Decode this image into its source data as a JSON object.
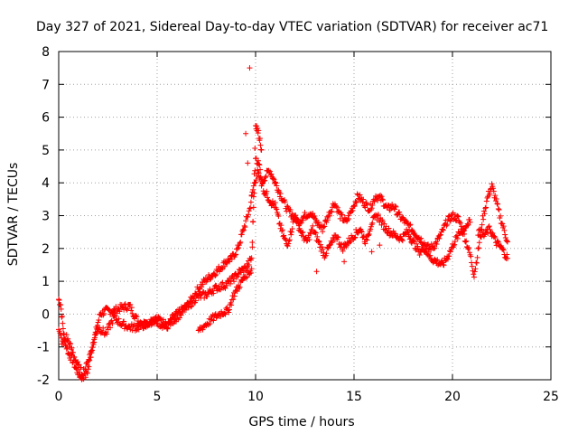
{
  "chart_data": {
    "type": "scatter",
    "title": "Day 327 of 2021, Sidereal Day-to-day VTEC variation (SDTVAR) for receiver ac71",
    "xlabel": "GPS time / hours",
    "ylabel": "SDTVAR / TECUs",
    "xlim": [
      0,
      25
    ],
    "ylim": [
      -2,
      8
    ],
    "xticks": [
      0,
      5,
      10,
      15,
      20,
      25
    ],
    "yticks": [
      -2,
      -1,
      0,
      1,
      2,
      3,
      4,
      5,
      6,
      7,
      8
    ],
    "xtick_labels": [
      "0",
      "5",
      "10",
      "15",
      "20",
      "25"
    ],
    "ytick_labels": [
      "-2",
      "-1",
      "0",
      "1",
      "2",
      "3",
      "4",
      "5",
      "6",
      "7",
      "8"
    ],
    "grid": true,
    "marker": "+",
    "colors": {
      "series": "#ff0000",
      "grid": "#a0a0a0",
      "axis": "#000000"
    },
    "series": [
      {
        "name": "SDTVAR",
        "tracks": [
          [
            [
              0.0,
              0.45
            ],
            [
              0.1,
              0.3
            ],
            [
              0.2,
              -0.3
            ],
            [
              0.3,
              -0.8
            ],
            [
              0.5,
              -1.2
            ],
            [
              0.7,
              -1.4
            ],
            [
              0.9,
              -1.7
            ],
            [
              1.1,
              -1.9
            ],
            [
              1.3,
              -1.95
            ],
            [
              1.5,
              -1.7
            ],
            [
              1.7,
              -1.0
            ],
            [
              1.9,
              -0.5
            ],
            [
              2.1,
              0.0
            ],
            [
              2.4,
              0.1
            ],
            [
              2.8,
              0.1
            ],
            [
              3.2,
              0.2
            ],
            [
              3.6,
              0.25
            ],
            [
              4.0,
              -0.2
            ],
            [
              4.4,
              -0.3
            ],
            [
              4.8,
              -0.2
            ],
            [
              5.2,
              -0.3
            ],
            [
              5.5,
              -0.4
            ],
            [
              5.8,
              -0.1
            ],
            [
              6.2,
              0.1
            ],
            [
              6.6,
              0.3
            ],
            [
              7.0,
              0.7
            ],
            [
              7.4,
              1.0
            ],
            [
              7.8,
              1.2
            ],
            [
              8.2,
              1.4
            ],
            [
              8.5,
              1.6
            ],
            [
              8.8,
              1.7
            ],
            [
              9.1,
              2.0
            ],
            [
              9.4,
              2.6
            ],
            [
              9.7,
              3.2
            ],
            [
              9.9,
              3.9
            ],
            [
              10.1,
              4.3
            ],
            [
              10.3,
              4.0
            ],
            [
              10.5,
              4.2
            ],
            [
              10.7,
              4.4
            ],
            [
              11.0,
              4.0
            ],
            [
              11.3,
              3.6
            ],
            [
              11.6,
              3.2
            ],
            [
              11.9,
              3.0
            ],
            [
              12.2,
              2.8
            ],
            [
              12.5,
              3.0
            ],
            [
              12.8,
              3.1
            ],
            [
              13.1,
              2.8
            ],
            [
              13.4,
              2.6
            ],
            [
              13.7,
              3.0
            ],
            [
              14.0,
              3.4
            ],
            [
              14.3,
              3.0
            ],
            [
              14.6,
              2.8
            ],
            [
              14.9,
              3.2
            ],
            [
              15.2,
              3.6
            ],
            [
              15.5,
              3.4
            ],
            [
              15.8,
              3.2
            ],
            [
              16.1,
              3.6
            ],
            [
              16.4,
              3.5
            ],
            [
              16.7,
              3.2
            ],
            [
              17.0,
              3.3
            ],
            [
              17.3,
              3.0
            ],
            [
              17.6,
              2.8
            ],
            [
              17.9,
              2.6
            ],
            [
              18.2,
              2.4
            ],
            [
              18.5,
              2.2
            ],
            [
              18.8,
              2.0
            ],
            [
              19.1,
              2.1
            ],
            [
              19.4,
              2.4
            ],
            [
              19.7,
              2.8
            ],
            [
              20.0,
              3.0
            ],
            [
              20.3,
              2.9
            ],
            [
              20.6,
              2.4
            ],
            [
              20.9,
              1.8
            ],
            [
              21.1,
              1.2
            ],
            [
              21.3,
              1.9
            ],
            [
              21.5,
              2.8
            ],
            [
              21.8,
              3.6
            ],
            [
              22.0,
              3.9
            ],
            [
              22.2,
              3.5
            ],
            [
              22.4,
              3.0
            ],
            [
              22.6,
              2.6
            ],
            [
              22.8,
              2.2
            ]
          ],
          [
            [
              0.0,
              -0.5
            ],
            [
              0.2,
              -0.9
            ],
            [
              0.4,
              -0.7
            ],
            [
              0.6,
              -1.0
            ],
            [
              0.8,
              -1.3
            ],
            [
              1.0,
              -1.6
            ],
            [
              1.2,
              -1.8
            ],
            [
              1.4,
              -1.6
            ],
            [
              1.6,
              -1.2
            ],
            [
              1.8,
              -0.8
            ],
            [
              2.0,
              -0.4
            ],
            [
              2.4,
              -0.6
            ],
            [
              2.8,
              -0.1
            ],
            [
              3.2,
              -0.3
            ],
            [
              3.6,
              -0.4
            ],
            [
              4.0,
              -0.4
            ],
            [
              4.5,
              -0.3
            ],
            [
              5.0,
              -0.15
            ],
            [
              5.5,
              -0.35
            ],
            [
              6.0,
              -0.1
            ],
            [
              6.5,
              0.2
            ],
            [
              7.0,
              0.5
            ],
            [
              7.5,
              0.6
            ],
            [
              8.0,
              0.8
            ],
            [
              8.5,
              0.9
            ],
            [
              8.9,
              1.1
            ],
            [
              9.2,
              1.3
            ],
            [
              9.5,
              1.4
            ],
            [
              9.8,
              1.7
            ],
            [
              10.0,
              4.8
            ],
            [
              10.2,
              4.5
            ],
            [
              10.4,
              3.8
            ],
            [
              10.6,
              3.6
            ],
            [
              10.8,
              3.4
            ],
            [
              11.0,
              3.3
            ],
            [
              11.2,
              2.8
            ],
            [
              11.4,
              2.4
            ],
            [
              11.6,
              2.1
            ],
            [
              11.8,
              2.5
            ],
            [
              12.0,
              3.0
            ],
            [
              12.3,
              2.5
            ],
            [
              12.6,
              2.2
            ],
            [
              12.9,
              2.6
            ],
            [
              13.2,
              2.2
            ],
            [
              13.5,
              1.8
            ],
            [
              13.8,
              2.1
            ],
            [
              14.1,
              2.4
            ],
            [
              14.4,
              2.0
            ],
            [
              14.7,
              2.2
            ],
            [
              15.0,
              2.4
            ],
            [
              15.3,
              2.6
            ],
            [
              15.6,
              2.2
            ],
            [
              15.9,
              2.8
            ],
            [
              16.2,
              3.0
            ],
            [
              16.5,
              2.7
            ],
            [
              16.8,
              2.5
            ],
            [
              17.1,
              2.4
            ],
            [
              17.4,
              2.3
            ],
            [
              17.7,
              2.5
            ],
            [
              18.0,
              2.2
            ],
            [
              18.3,
              1.9
            ],
            [
              18.6,
              2.0
            ],
            [
              18.9,
              1.7
            ],
            [
              19.2,
              1.6
            ],
            [
              19.5,
              1.5
            ],
            [
              19.8,
              1.8
            ],
            [
              20.1,
              2.2
            ],
            [
              20.4,
              2.5
            ],
            [
              20.7,
              2.7
            ],
            [
              20.9,
              2.8
            ]
          ],
          [
            [
              7.1,
              -0.5
            ],
            [
              7.5,
              -0.3
            ],
            [
              7.9,
              -0.1
            ],
            [
              8.3,
              0.05
            ],
            [
              8.6,
              0.1
            ],
            [
              8.9,
              0.6
            ],
            [
              9.2,
              0.9
            ],
            [
              9.5,
              1.2
            ],
            [
              9.8,
              1.35
            ],
            [
              10.0,
              5.8
            ],
            [
              10.1,
              5.6
            ],
            [
              10.2,
              5.4
            ],
            [
              10.3,
              5.0
            ]
          ],
          [
            [
              21.3,
              2.5
            ],
            [
              21.6,
              2.4
            ],
            [
              21.9,
              2.6
            ],
            [
              22.2,
              2.2
            ],
            [
              22.5,
              2.0
            ],
            [
              22.8,
              1.7
            ]
          ]
        ],
        "outliers": [
          [
            9.7,
            7.5
          ],
          [
            9.5,
            5.5
          ],
          [
            9.6,
            4.6
          ],
          [
            9.8,
            3.6
          ],
          [
            15.9,
            1.9
          ],
          [
            16.3,
            2.1
          ],
          [
            13.1,
            1.3
          ],
          [
            14.5,
            1.6
          ]
        ]
      }
    ]
  }
}
